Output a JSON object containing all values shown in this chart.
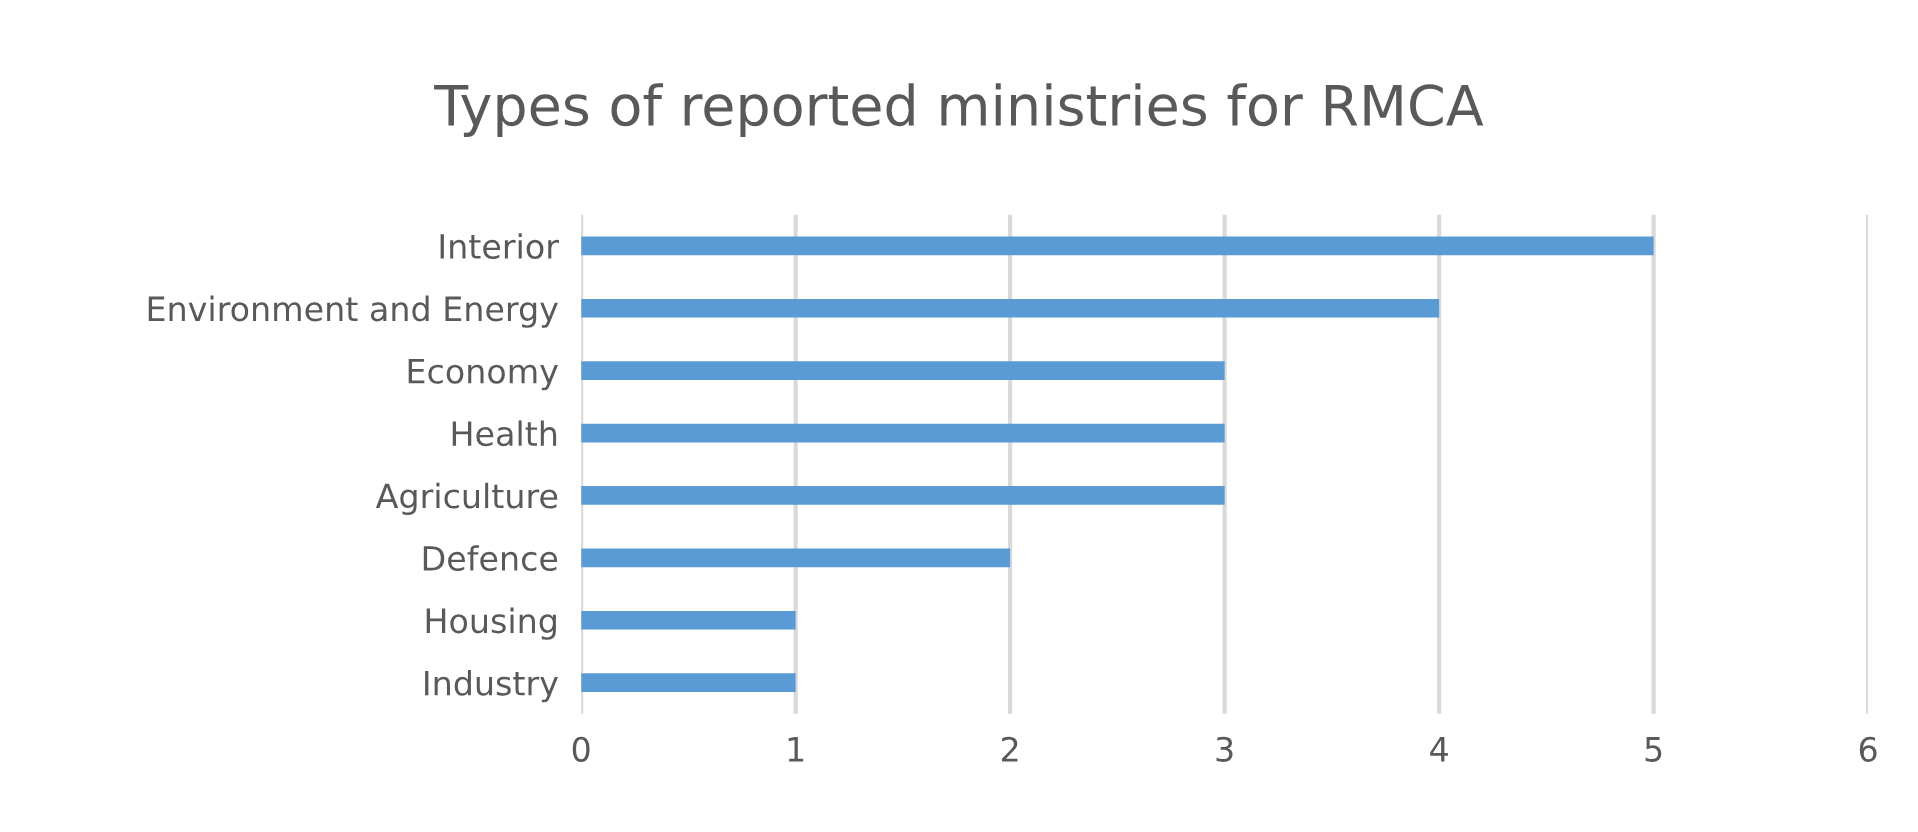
{
  "chart_data": {
    "type": "bar",
    "orientation": "horizontal",
    "title": "Types of reported ministries for RMCA",
    "categories": [
      "Interior",
      "Environment and Energy",
      "Economy",
      "Health",
      "Agriculture",
      "Defence",
      "Housing",
      "Industry"
    ],
    "values": [
      5,
      4,
      3,
      3,
      3,
      2,
      1,
      1
    ],
    "color": "#5b9bd5",
    "xlim": [
      0,
      6
    ],
    "xticks": [
      0,
      1,
      2,
      3,
      4,
      5,
      6
    ],
    "grid": "x",
    "legend": false
  }
}
